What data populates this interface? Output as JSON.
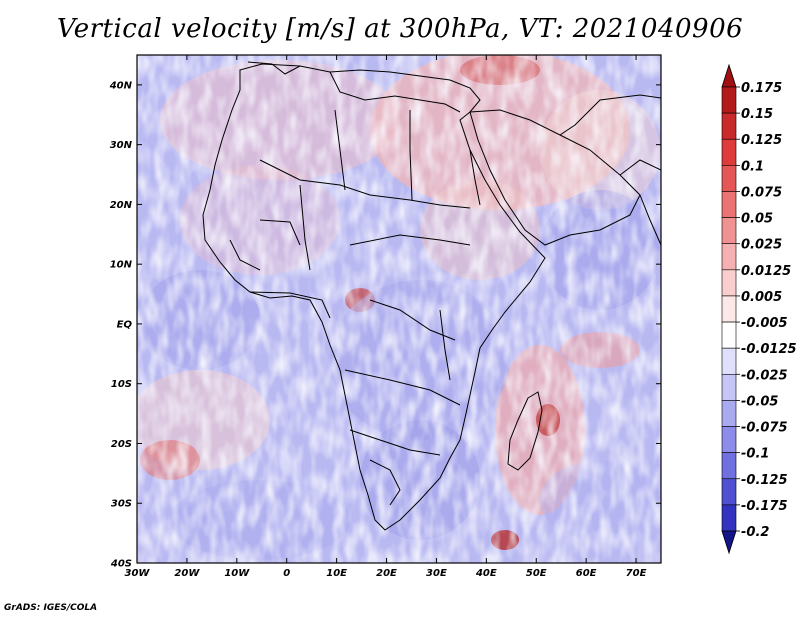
{
  "title": "Vertical velocity [m/s] at 300hPa, VT: 2021040906",
  "footer": "GrADS: IGES/COLA",
  "map": {
    "projection": "latlon",
    "lon_range": [
      -30,
      75
    ],
    "lat_range": [
      -40,
      45
    ],
    "field": "vertical velocity",
    "level": "300hPa",
    "valid_time": "2021040906",
    "lat_ticks": [
      {
        "value": 40,
        "label": "40N"
      },
      {
        "value": 30,
        "label": "30N"
      },
      {
        "value": 20,
        "label": "20N"
      },
      {
        "value": 10,
        "label": "10N"
      },
      {
        "value": 0,
        "label": "EQ"
      },
      {
        "value": -10,
        "label": "10S"
      },
      {
        "value": -20,
        "label": "20S"
      },
      {
        "value": -30,
        "label": "30S"
      },
      {
        "value": -40,
        "label": "40S"
      }
    ],
    "lon_ticks": [
      {
        "value": -30,
        "label": "30W"
      },
      {
        "value": -20,
        "label": "20W"
      },
      {
        "value": -10,
        "label": "10W"
      },
      {
        "value": 0,
        "label": "0"
      },
      {
        "value": 10,
        "label": "10E"
      },
      {
        "value": 20,
        "label": "20E"
      },
      {
        "value": 30,
        "label": "30E"
      },
      {
        "value": 40,
        "label": "40E"
      },
      {
        "value": 50,
        "label": "50E"
      },
      {
        "value": 60,
        "label": "60E"
      },
      {
        "value": 70,
        "label": "70E"
      }
    ]
  },
  "colorbar": {
    "levels": [
      {
        "label": "0.175",
        "color": "#b31a1a"
      },
      {
        "label": "0.15",
        "color": "#c92a2a"
      },
      {
        "label": "0.125",
        "color": "#de3b3b"
      },
      {
        "label": "0.1",
        "color": "#e55757"
      },
      {
        "label": "0.075",
        "color": "#eb7373"
      },
      {
        "label": "0.05",
        "color": "#f09292"
      },
      {
        "label": "0.025",
        "color": "#f5b1b1"
      },
      {
        "label": "0.0125",
        "color": "#f9cece"
      },
      {
        "label": "0.005",
        "color": "#fce8e8"
      },
      {
        "label": "-0.005",
        "color": "#ffffff"
      },
      {
        "label": "-0.0125",
        "color": "#e0e0fb"
      },
      {
        "label": "-0.025",
        "color": "#c6c6f6"
      },
      {
        "label": "-0.05",
        "color": "#aaaaf0"
      },
      {
        "label": "-0.075",
        "color": "#8d8de9"
      },
      {
        "label": "-0.1",
        "color": "#7070e0"
      },
      {
        "label": "-0.125",
        "color": "#5050d2"
      },
      {
        "label": "-0.175",
        "color": "#3333c0"
      },
      {
        "label": "-0.2",
        "color": "#1f1fa8"
      }
    ],
    "top_arrow_color": "#a01010",
    "bottom_arrow_color": "#14148a"
  }
}
